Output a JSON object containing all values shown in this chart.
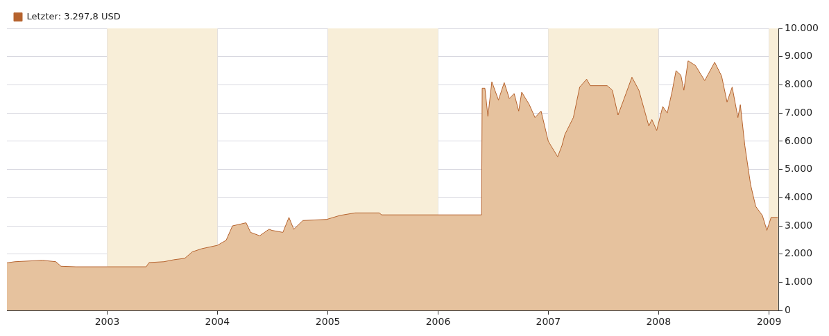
{
  "chart_data": {
    "type": "area",
    "x": [
      "2002-02-03",
      "2002-03-01",
      "2002-06-01",
      "2002-07-15",
      "2002-08-01",
      "2002-09-20",
      "2003-01-01",
      "2003-05-10",
      "2003-05-20",
      "2003-07-08",
      "2003-08-10",
      "2003-09-15",
      "2003-10-10",
      "2003-11-10",
      "2004-01-01",
      "2004-01-30",
      "2004-02-20",
      "2004-03-20",
      "2004-04-05",
      "2004-04-20",
      "2004-05-20",
      "2004-06-20",
      "2004-06-30",
      "2004-08-05",
      "2004-08-25",
      "2004-09-10",
      "2004-10-10",
      "2004-12-28",
      "2005-02-10",
      "2005-04-01",
      "2005-06-20",
      "2005-06-28",
      "2006-05-25",
      "2006-05-27",
      "2006-06-05",
      "2006-06-15",
      "2006-06-28",
      "2006-07-20",
      "2006-08-08",
      "2006-08-25",
      "2006-09-10",
      "2006-09-25",
      "2006-10-05",
      "2006-10-30",
      "2006-11-18",
      "2006-12-08",
      "2007-01-01",
      "2007-01-10",
      "2007-02-01",
      "2007-02-15",
      "2007-02-25",
      "2007-03-25",
      "2007-04-15",
      "2007-05-08",
      "2007-05-20",
      "2007-07-15",
      "2007-08-01",
      "2007-08-20",
      "2007-09-05",
      "2007-10-05",
      "2007-10-28",
      "2007-11-18",
      "2007-11-30",
      "2007-12-10",
      "2007-12-26",
      "2008-01-15",
      "2008-01-30",
      "2008-02-15",
      "2008-02-28",
      "2008-03-15",
      "2008-03-25",
      "2008-04-08",
      "2008-05-02",
      "2008-06-02",
      "2008-07-05",
      "2008-07-28",
      "2008-08-15",
      "2008-09-01",
      "2008-09-20",
      "2008-09-28",
      "2008-10-13",
      "2008-11-01",
      "2008-11-18",
      "2008-12-10",
      "2008-12-25",
      "2009-01-08",
      "2009-01-30"
    ],
    "series": [
      {
        "name": "Letzter: 3.297,8 USD",
        "color": "#b5622d",
        "values": [
          1690,
          1730,
          1780,
          1730,
          1570,
          1550,
          1550,
          1550,
          1700,
          1730,
          1800,
          1850,
          2080,
          2190,
          2310,
          2490,
          3000,
          3070,
          3110,
          2770,
          2650,
          2880,
          2840,
          2770,
          3300,
          2880,
          3190,
          3230,
          3370,
          3460,
          3460,
          3390,
          3390,
          7880,
          7880,
          6880,
          8110,
          7460,
          8080,
          7510,
          7690,
          7070,
          7740,
          7300,
          6840,
          7070,
          6000,
          5840,
          5450,
          5840,
          6240,
          6840,
          7920,
          8200,
          7970,
          7970,
          7810,
          6930,
          7390,
          8270,
          7810,
          7000,
          6540,
          6770,
          6380,
          7230,
          7000,
          7760,
          8500,
          8340,
          7810,
          8850,
          8690,
          8150,
          8800,
          8310,
          7390,
          7920,
          6840,
          7300,
          5840,
          4460,
          3690,
          3370,
          2840,
          3300,
          3300
        ]
      }
    ],
    "xlim": [
      "2002-02-03",
      "2009-02-01"
    ],
    "xticks": [
      "2003",
      "2004",
      "2005",
      "2006",
      "2007",
      "2008",
      "2009"
    ],
    "ylim": [
      0,
      10000
    ],
    "yticks": [
      {
        "value": 0,
        "label": "0"
      },
      {
        "value": 1000,
        "label": "1.000"
      },
      {
        "value": 2000,
        "label": "2.000"
      },
      {
        "value": 3000,
        "label": "3.000"
      },
      {
        "value": 4000,
        "label": "4.000"
      },
      {
        "value": 5000,
        "label": "5.000"
      },
      {
        "value": 6000,
        "label": "6.000"
      },
      {
        "value": 7000,
        "label": "7.000"
      },
      {
        "value": 8000,
        "label": "8.000"
      },
      {
        "value": 9000,
        "label": "9.000"
      },
      {
        "value": 10000,
        "label": "10.000"
      }
    ],
    "bands": [
      {
        "axis": "x",
        "from": "2003",
        "to": "2004",
        "color": "#f8eed8"
      },
      {
        "axis": "x",
        "from": "2005",
        "to": "2006",
        "color": "#f8eed8"
      },
      {
        "axis": "x",
        "from": "2007",
        "to": "2008",
        "color": "#f8eed8"
      },
      {
        "axis": "x",
        "from": "2009",
        "to": "2009-02-01",
        "color": "#f8eed8"
      }
    ],
    "grid": true,
    "legend": "top left",
    "marker": "none",
    "line_style": "solid"
  }
}
